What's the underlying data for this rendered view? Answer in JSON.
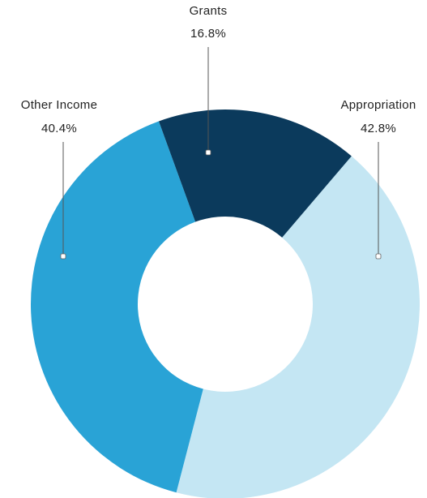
{
  "chart_data": {
    "type": "pie",
    "title": "",
    "categories": [
      "Appropriation",
      "Other Income",
      "Grants"
    ],
    "values": [
      42.8,
      40.4,
      16.8
    ],
    "value_labels": [
      "42.8%",
      "40.4%",
      "16.8%"
    ],
    "colors": [
      "#c4e6f3",
      "#29a3d6",
      "#0b3a5c"
    ],
    "legend": "none",
    "style": "donut"
  }
}
